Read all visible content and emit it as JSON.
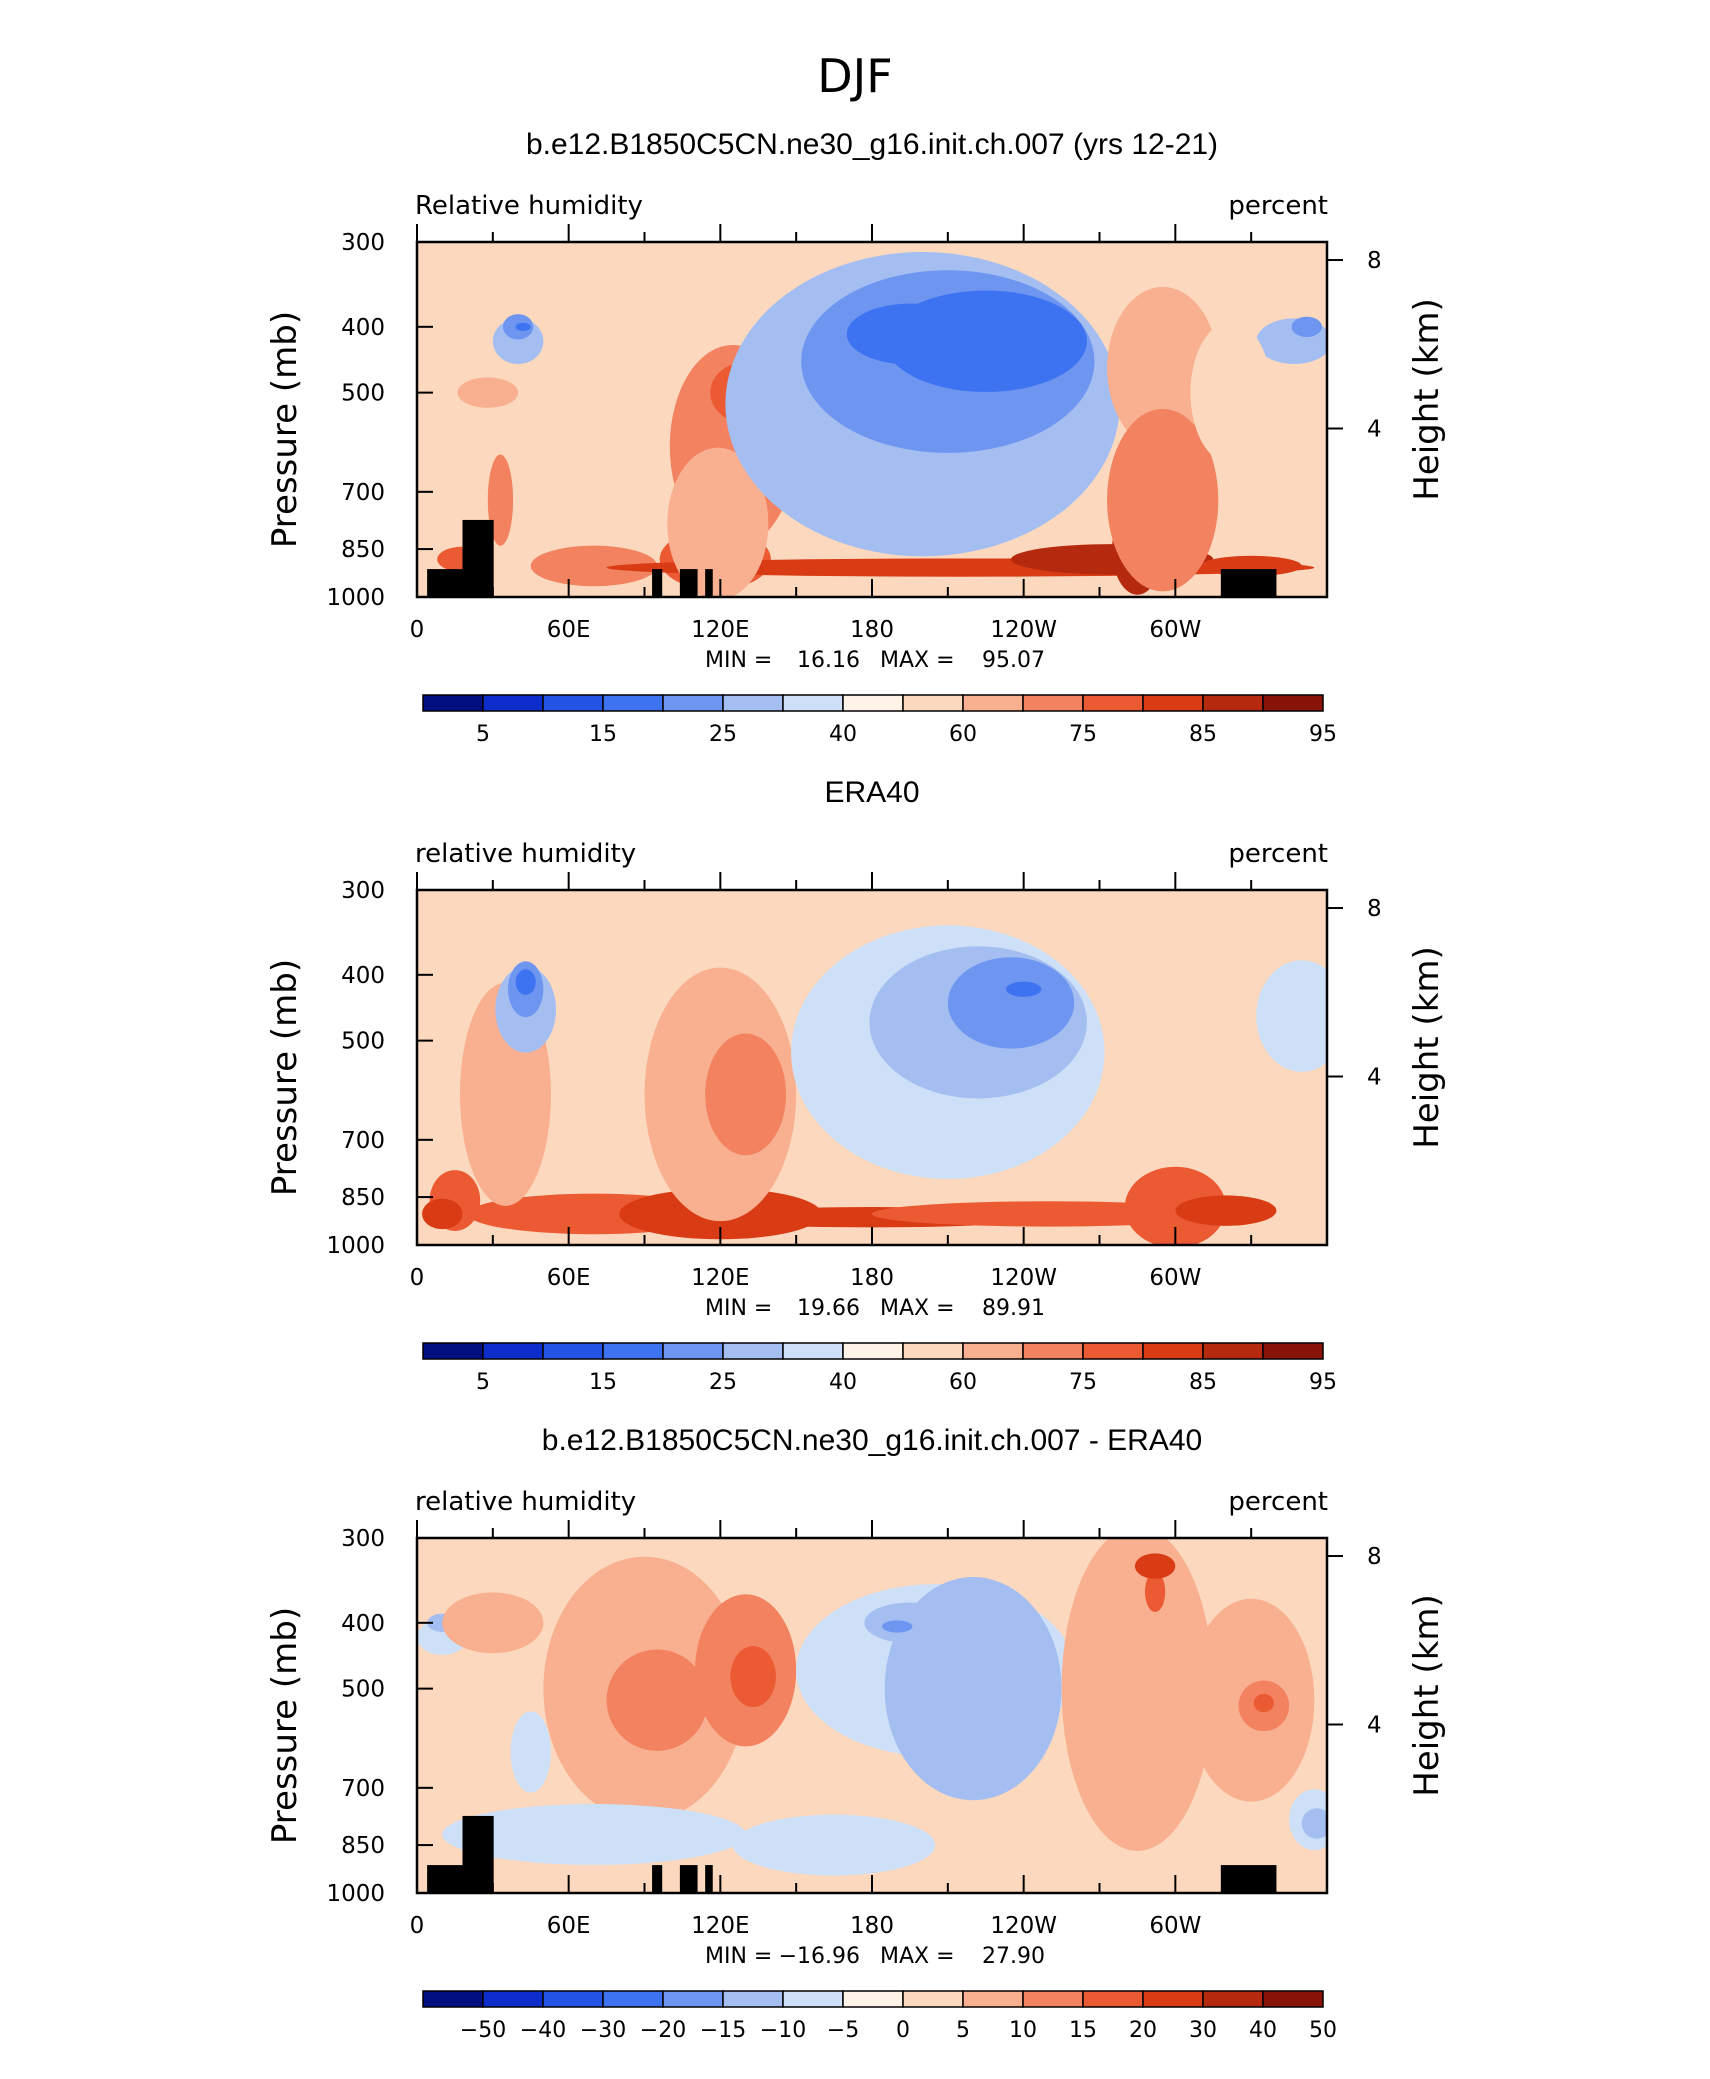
{
  "figure": {
    "title": "DJF"
  },
  "chart_data": [
    {
      "type": "heatmap",
      "title": "b.e12.B1850C5CN.ne30_g16.init.ch.007 (yrs 12-21)",
      "left_label": "Relative humidity",
      "right_label": "percent",
      "ylabel": "Pressure (mb)",
      "y2label": "Height (km)",
      "x_ticks": [
        "0",
        "60E",
        "120E",
        "180",
        "120W",
        "60W"
      ],
      "y_ticks": [
        "300",
        "400",
        "500",
        "700",
        "850",
        "1000"
      ],
      "y2_ticks": [
        "8",
        "4"
      ],
      "stats": {
        "min_label": "MIN =",
        "min": "16.16",
        "max_label": "MAX =",
        "max": "95.07"
      },
      "colorbar_labels": [
        "5",
        "15",
        "25",
        "40",
        "60",
        "75",
        "85",
        "95"
      ],
      "terrain": true
    },
    {
      "type": "heatmap",
      "title": "ERA40",
      "left_label": "relative humidity",
      "right_label": "percent",
      "ylabel": "Pressure (mb)",
      "y2label": "Height (km)",
      "x_ticks": [
        "0",
        "60E",
        "120E",
        "180",
        "120W",
        "60W"
      ],
      "y_ticks": [
        "300",
        "400",
        "500",
        "700",
        "850",
        "1000"
      ],
      "y2_ticks": [
        "8",
        "4"
      ],
      "stats": {
        "min_label": "MIN =",
        "min": "19.66",
        "max_label": "MAX =",
        "max": "89.91"
      },
      "colorbar_labels": [
        "5",
        "15",
        "25",
        "40",
        "60",
        "75",
        "85",
        "95"
      ],
      "terrain": false
    },
    {
      "type": "heatmap",
      "title": "b.e12.B1850C5CN.ne30_g16.init.ch.007 - ERA40",
      "left_label": "relative humidity",
      "right_label": "percent",
      "ylabel": "Pressure (mb)",
      "y2label": "Height (km)",
      "x_ticks": [
        "0",
        "60E",
        "120E",
        "180",
        "120W",
        "60W"
      ],
      "y_ticks": [
        "300",
        "400",
        "500",
        "700",
        "850",
        "1000"
      ],
      "y2_ticks": [
        "8",
        "4"
      ],
      "stats": {
        "min_label": "MIN =",
        "min": "−16.96",
        "max_label": "MAX =",
        "max": "27.90"
      },
      "colorbar_labels": [
        "−50",
        "−40",
        "−30",
        "−20",
        "−15",
        "−10",
        "−5",
        "0",
        "5",
        "10",
        "15",
        "20",
        "30",
        "40",
        "50"
      ],
      "terrain": true
    }
  ],
  "colors": {
    "scale": [
      "#000f80",
      "#0d2ecc",
      "#2454e6",
      "#3d73f0",
      "#6e95f0",
      "#a4bef2",
      "#cde0f7",
      "#fff3e8",
      "#fcd9be",
      "#f8b090",
      "#f28260",
      "#ec5a34",
      "#d93c15",
      "#b52a0e",
      "#8a1307"
    ]
  }
}
